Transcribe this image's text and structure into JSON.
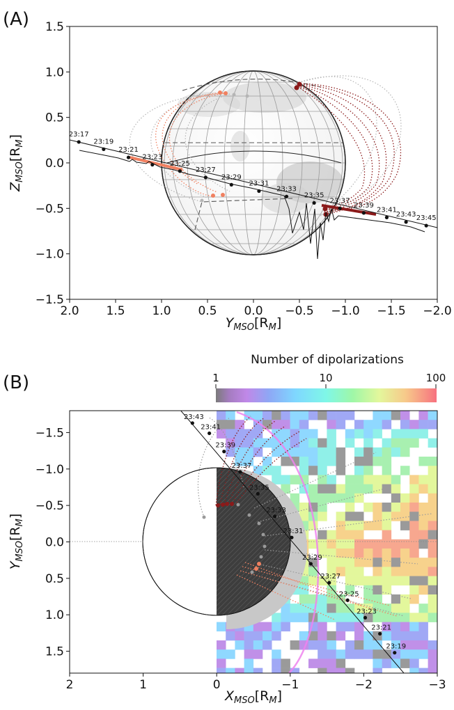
{
  "chart_data": [
    {
      "panel_label": "(A)",
      "type": "line",
      "xlabel": "Y",
      "xlabel_sub": "MSO",
      "xlabel_unit": "[R",
      "xlabel_unit_sub": "M",
      "xlabel_unit_close": "]",
      "ylabel": "Z",
      "ylabel_sub": "MSO",
      "ylabel_unit": "[R",
      "ylabel_unit_sub": "M",
      "ylabel_unit_close": "]",
      "xlim": [
        2.0,
        -2.0
      ],
      "ylim": [
        -1.5,
        1.5
      ],
      "xticks": [
        "2.0",
        "1.5",
        "1.0",
        "0.5",
        "0.0",
        "−0.5",
        "−1.0",
        "−1.5",
        "−2.0"
      ],
      "yticks": [
        "1.5",
        "1.0",
        "0.5",
        "0.0",
        "−0.5",
        "−1.0",
        "−1.5"
      ],
      "trajectory": {
        "labels": [
          "23:17",
          "23:19",
          "23:21",
          "23:23",
          "23:25",
          "23:27",
          "23:29",
          "23:31",
          "23:33",
          "23:35",
          "23:37",
          "23:39",
          "23:41",
          "23:43",
          "23:45"
        ],
        "y": [
          1.9,
          1.63,
          1.36,
          1.1,
          0.8,
          0.52,
          0.24,
          -0.06,
          -0.36,
          -0.66,
          -0.94,
          -1.2,
          -1.45,
          -1.66,
          -1.88
        ],
        "z": [
          0.23,
          0.15,
          0.06,
          -0.02,
          -0.09,
          -0.16,
          -0.24,
          -0.31,
          -0.37,
          -0.44,
          -0.5,
          -0.55,
          -0.6,
          -0.65,
          -0.69
        ]
      },
      "planet_radius": 1.0,
      "colors": {
        "trajectory": "#111111",
        "field_dark": "#8b1a1a",
        "field_light": "#f08060",
        "field_grey": "#b4b4b4",
        "sphere_grid": "#9a9a9a"
      }
    },
    {
      "panel_label": "(B)",
      "type": "heatmap",
      "colorbar": {
        "title": "Number of dipolarizations",
        "ticks": [
          "1",
          "10",
          "100"
        ],
        "scale": "log",
        "range": [
          1,
          100
        ]
      },
      "xlabel": "X",
      "xlabel_sub": "MSO",
      "xlabel_unit": "[R",
      "xlabel_unit_sub": "M",
      "xlabel_unit_close": "]",
      "ylabel": "Y",
      "ylabel_sub": "MSO",
      "ylabel_unit": "[R",
      "ylabel_unit_sub": "M",
      "ylabel_unit_close": "]",
      "xlim": [
        2,
        -3
      ],
      "ylim": [
        -1.8,
        1.8
      ],
      "xticks": [
        "2",
        "1",
        "0",
        "−1",
        "−2",
        "−3"
      ],
      "yticks": [
        "−1.5",
        "−1.0",
        "−0.5",
        "0.0",
        "0.5",
        "1.0",
        "1.5"
      ],
      "trajectory": {
        "labels": [
          "23:43",
          "23:41",
          "23:39",
          "23:37",
          "23:35",
          "23:33",
          "23:31",
          "23:29",
          "23:27",
          "23:25",
          "23:23",
          "23:21",
          "23:19"
        ],
        "x": [
          0.33,
          0.1,
          -0.1,
          -0.32,
          -0.56,
          -0.79,
          -1.02,
          -1.28,
          -1.53,
          -1.78,
          -2.02,
          -2.22,
          -2.42
        ],
        "y": [
          -1.63,
          -1.49,
          -1.24,
          -0.96,
          -0.66,
          -0.35,
          -0.06,
          0.3,
          0.56,
          0.8,
          1.04,
          1.26,
          1.52
        ]
      },
      "colors": {
        "trajectory": "#111111",
        "planet_night": "#3d3d3d",
        "magnetopause": "#ee82ee"
      }
    }
  ]
}
